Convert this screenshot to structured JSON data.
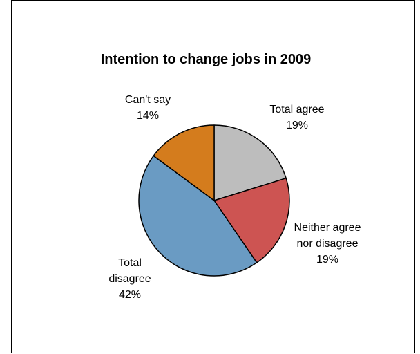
{
  "chart_data": {
    "type": "pie",
    "title": "Intention to change jobs in 2009",
    "slices": [
      {
        "label": [
          "Total agree"
        ],
        "pct_label": "19%",
        "value": 19,
        "color": "#BDBDBD"
      },
      {
        "label": [
          "Neither agree",
          "nor disagree"
        ],
        "pct_label": "19%",
        "value": 19,
        "color": "#CD5452"
      },
      {
        "label": [
          "Total",
          "disagree"
        ],
        "pct_label": "42%",
        "value": 42,
        "color": "#6A9BC3"
      },
      {
        "label": [
          "Can't say"
        ],
        "pct_label": "14%",
        "value": 14,
        "color": "#D47C1D"
      }
    ],
    "legend": "none"
  }
}
